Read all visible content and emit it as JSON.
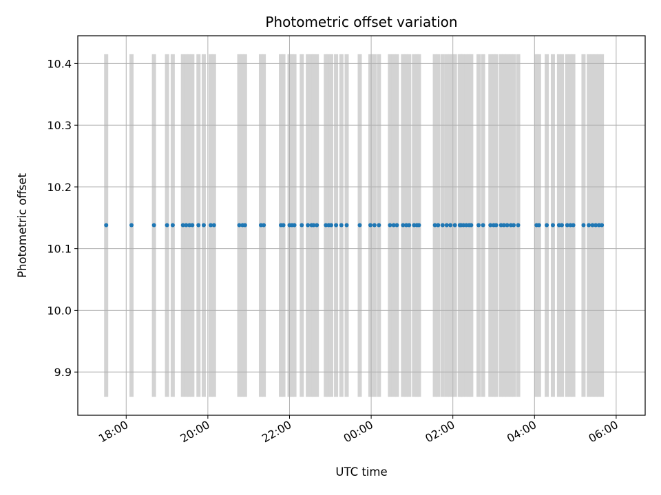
{
  "chart_data": {
    "type": "scatter",
    "title": "Photometric offset variation",
    "xlabel": "UTC time",
    "ylabel": "Photometric offset",
    "x_unit": "hours since 17:00 UTC",
    "xlim": [
      -0.185,
      13.71
    ],
    "ylim": [
      9.83,
      10.445
    ],
    "grid": true,
    "y_ticks": [
      9.9,
      10.0,
      10.1,
      10.2,
      10.3,
      10.4
    ],
    "y_tick_labels": [
      "9.9",
      "10.0",
      "10.1",
      "10.2",
      "10.3",
      "10.4"
    ],
    "x_ticks": [
      1,
      3,
      5,
      7,
      9,
      11,
      13
    ],
    "x_tick_labels": [
      "18:00",
      "20:00",
      "22:00",
      "00:00",
      "02:00",
      "04:00",
      "06:00"
    ],
    "band": {
      "lower": 9.86,
      "upper": 10.415,
      "color": "#d3d3d3"
    },
    "series": [
      {
        "name": "offset",
        "color": "#1f77b4",
        "y": 10.138,
        "x": [
          0.51,
          1.13,
          1.68,
          2.0,
          2.14,
          2.39,
          2.47,
          2.55,
          2.62,
          2.77,
          2.9,
          3.07,
          3.15,
          3.77,
          3.85,
          3.91,
          4.3,
          4.37,
          4.79,
          4.85,
          5.0,
          5.06,
          5.12,
          5.3,
          5.45,
          5.54,
          5.59,
          5.67,
          5.89,
          5.96,
          6.02,
          6.14,
          6.27,
          6.4,
          6.72,
          6.98,
          7.08,
          7.19,
          7.46,
          7.55,
          7.63,
          7.78,
          7.86,
          7.93,
          8.05,
          8.12,
          8.17,
          8.56,
          8.64,
          8.75,
          8.85,
          8.94,
          9.05,
          9.17,
          9.2,
          9.26,
          9.33,
          9.4,
          9.45,
          9.63,
          9.74,
          9.92,
          10.0,
          10.06,
          10.18,
          10.25,
          10.33,
          10.42,
          10.49,
          10.6,
          11.05,
          11.11,
          11.3,
          11.45,
          11.6,
          11.67,
          11.8,
          11.88,
          11.95,
          12.2,
          12.33,
          12.42,
          12.5,
          12.58,
          12.65
        ]
      }
    ]
  }
}
